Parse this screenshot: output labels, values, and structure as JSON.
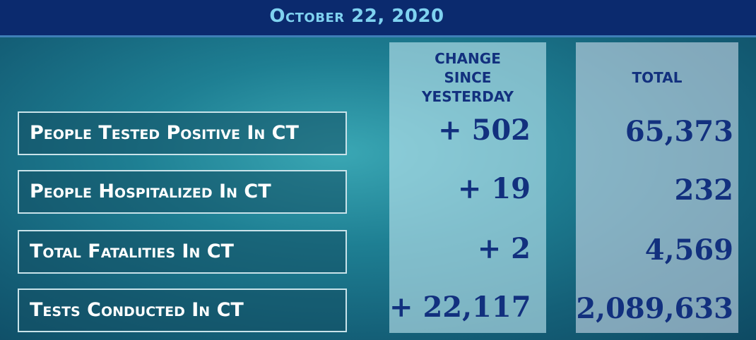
{
  "header": {
    "date": "October 22, 2020"
  },
  "table": {
    "columns": [
      "CHANGE SINCE YESTERDAY",
      "TOTAL"
    ],
    "rows": [
      [
        "People Tested Positive In CT",
        "+ 502",
        "65,373"
      ],
      [
        "People Hospitalized In CT",
        "+ 19",
        "232"
      ],
      [
        "Total Fatalities In CT",
        "+ 2",
        "4,569"
      ],
      [
        "Tests Conducted In CT",
        "+ 22,117",
        "2,089,633"
      ]
    ]
  }
}
